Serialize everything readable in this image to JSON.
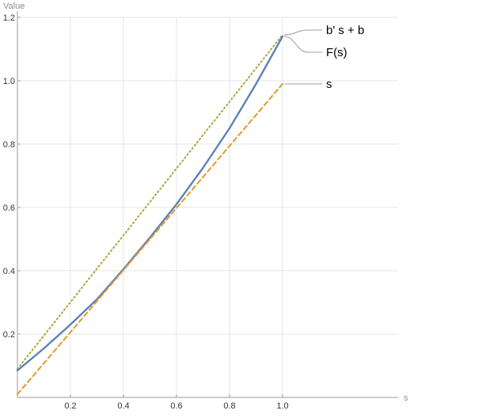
{
  "chart_data": {
    "type": "line",
    "title": "",
    "xlabel": "s",
    "ylabel": "Value",
    "xlim": [
      0,
      1.15
    ],
    "ylim": [
      0,
      1.2
    ],
    "grid": true,
    "x_ticks": [
      0.2,
      0.4,
      0.6,
      0.8,
      1.0
    ],
    "y_ticks": [
      0.2,
      0.4,
      0.6,
      0.8,
      1.0,
      1.2
    ],
    "x_tick_labels": [
      "0.2",
      "0.4",
      "0.6",
      "0.8",
      "1.0"
    ],
    "y_tick_labels": [
      "0.2",
      "0.4",
      "0.6",
      "0.8",
      "1.0",
      "1.2"
    ],
    "legend_placement": "right, labels at line ends",
    "series": [
      {
        "name": "b' s + b",
        "color": "#a8a83c",
        "style": "dotted",
        "x": [
          0.0,
          1.0
        ],
        "y": [
          0.09,
          1.145
        ]
      },
      {
        "name": "F(s)",
        "color": "#5b82b8",
        "style": "solid",
        "x": [
          0.0,
          0.1,
          0.2,
          0.3,
          0.4,
          0.5,
          0.6,
          0.7,
          0.8,
          0.9,
          1.0
        ],
        "y": [
          0.085,
          0.155,
          0.23,
          0.31,
          0.405,
          0.505,
          0.61,
          0.725,
          0.85,
          0.99,
          1.14
        ]
      },
      {
        "name": "s",
        "color": "#e09a2c",
        "style": "dashed",
        "x": [
          0.0,
          1.0
        ],
        "y": [
          0.01,
          0.99
        ]
      }
    ]
  }
}
